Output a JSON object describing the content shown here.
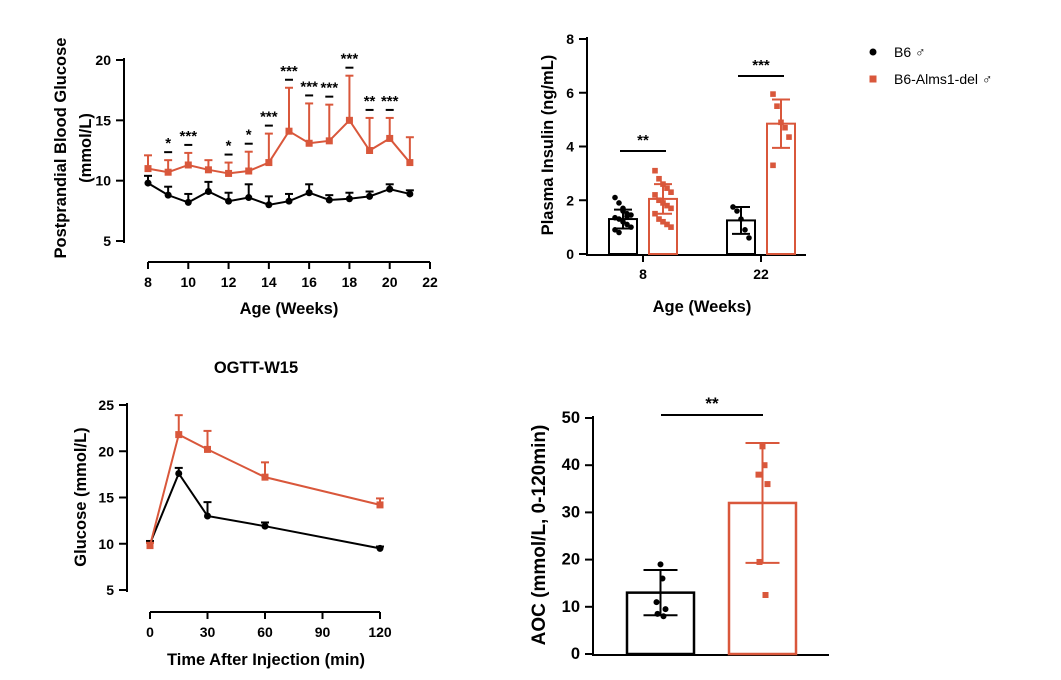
{
  "colors": {
    "b6": "#000000",
    "del": "#d9573b"
  },
  "legend": {
    "b6": "B6 ♂",
    "del": "B6-Alms1-del ♂"
  },
  "chart_data": [
    {
      "id": "panel_a",
      "type": "line",
      "title": "",
      "xlabel": "Age (Weeks)",
      "ylabel": "Postprandial Blood Glucose",
      "ylabel2": "(mmol/L)",
      "xlim": [
        8,
        22
      ],
      "ylim": [
        5,
        20
      ],
      "xticks": [
        8,
        10,
        12,
        14,
        16,
        18,
        20,
        22
      ],
      "yticks": [
        5,
        10,
        15,
        20
      ],
      "x": [
        8,
        9,
        10,
        11,
        12,
        13,
        14,
        15,
        16,
        17,
        18,
        19,
        20,
        21
      ],
      "series": [
        {
          "name": "B6 ♂",
          "key": "b6",
          "values": [
            9.8,
            8.8,
            8.2,
            9.1,
            8.3,
            8.6,
            8.0,
            8.3,
            9.0,
            8.4,
            8.5,
            8.7,
            9.3,
            8.9
          ],
          "err": [
            0.6,
            0.7,
            0.7,
            0.8,
            0.7,
            1.1,
            0.7,
            0.6,
            0.7,
            0.4,
            0.5,
            0.4,
            0.4,
            0.3
          ]
        },
        {
          "name": "B6-Alms1-del ♂",
          "key": "del",
          "values": [
            11.0,
            10.7,
            11.3,
            10.9,
            10.6,
            10.8,
            11.5,
            14.1,
            13.1,
            13.3,
            15.0,
            12.5,
            13.5,
            11.5
          ],
          "err": [
            1.1,
            1.0,
            1.0,
            0.8,
            0.9,
            1.6,
            2.4,
            3.6,
            3.3,
            3.0,
            3.7,
            2.7,
            1.7,
            2.1
          ]
        }
      ],
      "significance": [
        {
          "x": 9,
          "label": "*"
        },
        {
          "x": 10,
          "label": "***"
        },
        {
          "x": 12,
          "label": "*"
        },
        {
          "x": 13,
          "label": "*"
        },
        {
          "x": 14,
          "label": "***"
        },
        {
          "x": 15,
          "label": "***"
        },
        {
          "x": 16,
          "label": "***"
        },
        {
          "x": 17,
          "label": "***"
        },
        {
          "x": 18,
          "label": "***"
        },
        {
          "x": 19,
          "label": "**"
        },
        {
          "x": 20,
          "label": "***"
        }
      ]
    },
    {
      "id": "panel_b",
      "type": "bar",
      "title": "",
      "xlabel": "Age (Weeks)",
      "ylabel": "Plasma Insulin (ng/mL)",
      "ylim": [
        0,
        8
      ],
      "yticks": [
        0,
        2,
        4,
        6,
        8
      ],
      "categories": [
        "8",
        "22"
      ],
      "series": [
        {
          "name": "B6 ♂",
          "key": "b6",
          "values": [
            1.3,
            1.25
          ],
          "err": [
            0.35,
            0.5
          ],
          "points": [
            [
              2.1,
              1.9,
              1.7,
              1.5,
              1.45,
              1.35,
              1.3,
              1.2,
              1.1,
              1.0,
              0.9,
              0.8,
              1.6,
              1.4
            ],
            [
              1.75,
              1.6,
              1.3,
              0.9,
              0.6
            ]
          ]
        },
        {
          "name": "B6-Alms1-del ♂",
          "key": "del",
          "values": [
            2.05,
            4.85
          ],
          "err": [
            0.55,
            0.9
          ],
          "points": [
            [
              3.1,
              2.8,
              2.6,
              2.45,
              2.3,
              2.2,
              2.0,
              1.9,
              1.8,
              1.7,
              1.5,
              1.3,
              1.2,
              1.1,
              1.0
            ],
            [
              5.95,
              5.5,
              4.9,
              4.7,
              4.35,
              3.3
            ]
          ]
        }
      ],
      "significance": [
        {
          "category": "8",
          "label": "**"
        },
        {
          "category": "22",
          "label": "***"
        }
      ]
    },
    {
      "id": "panel_c",
      "type": "line",
      "title": "OGTT-W15",
      "xlabel": "Time After Injection (min)",
      "ylabel": "Glucose (mmol/L)",
      "xlim": [
        0,
        120
      ],
      "ylim": [
        5,
        25
      ],
      "xticks": [
        0,
        30,
        60,
        90,
        120
      ],
      "yticks": [
        5,
        10,
        15,
        20,
        25
      ],
      "x": [
        0,
        15,
        30,
        60,
        120
      ],
      "series": [
        {
          "name": "B6 ♂",
          "key": "b6",
          "values": [
            10.0,
            17.6,
            13.0,
            11.9,
            9.5
          ],
          "err": [
            0.3,
            0.6,
            1.5,
            0.4,
            0.2
          ]
        },
        {
          "name": "B6-Alms1-del ♂",
          "key": "del",
          "values": [
            9.8,
            21.8,
            20.2,
            17.2,
            14.2
          ],
          "err": [
            0.3,
            2.1,
            2.0,
            1.6,
            0.7
          ]
        }
      ]
    },
    {
      "id": "panel_d",
      "type": "bar",
      "title": "",
      "xlabel": "",
      "ylabel": "AOC (mmol/L, 0-120min)",
      "ylim": [
        0,
        50
      ],
      "yticks": [
        0,
        10,
        20,
        30,
        40,
        50
      ],
      "series": [
        {
          "name": "B6 ♂",
          "key": "b6",
          "value": 13.0,
          "err": 4.8,
          "points": [
            19.0,
            16.0,
            11.0,
            9.5,
            8.5,
            8.0
          ]
        },
        {
          "name": "B6-Alms1-del ♂",
          "key": "del",
          "value": 32.0,
          "err": 12.7,
          "points": [
            44.0,
            40.0,
            38.0,
            36.0,
            19.5,
            12.5
          ]
        }
      ],
      "significance": [
        {
          "label": "**"
        }
      ]
    }
  ]
}
